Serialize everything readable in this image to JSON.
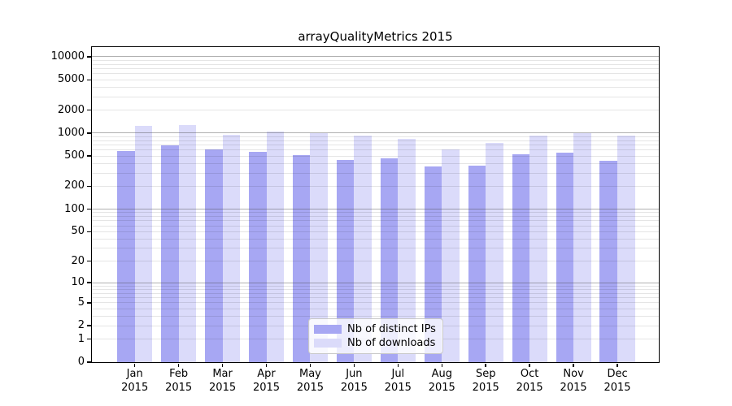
{
  "chart_data": {
    "type": "bar",
    "title": "arrayQualityMetrics 2015",
    "categories": [
      "Jan",
      "Feb",
      "Mar",
      "Apr",
      "May",
      "Jun",
      "Jul",
      "Aug",
      "Sep",
      "Oct",
      "Nov",
      "Dec"
    ],
    "category_year": "2015",
    "series": [
      {
        "name": "Nb of distinct IPs",
        "color": "#a7a7f3",
        "values": [
          585,
          690,
          605,
          575,
          515,
          450,
          465,
          365,
          370,
          525,
          550,
          430
        ]
      },
      {
        "name": "Nb of downloads",
        "color": "#dbdbfa",
        "values": [
          1250,
          1280,
          960,
          1050,
          990,
          935,
          850,
          610,
          745,
          930,
          1005,
          930
        ]
      }
    ],
    "y_axis": {
      "scale": "log1p",
      "tick_values": [
        0,
        1,
        2,
        5,
        10,
        20,
        50,
        100,
        200,
        500,
        1000,
        2000,
        5000,
        10000
      ],
      "major_grid_values": [
        10,
        100,
        1000,
        10000
      ],
      "minor_grid_base_values": [
        1,
        2,
        3,
        4,
        5,
        6,
        7,
        8,
        9
      ],
      "range_max": 12500
    },
    "x_axis": {
      "label_line_2": "2015"
    },
    "legend": {
      "position": "lower-center"
    },
    "grid": true,
    "colors": {
      "major_grid": "#b3b3b3",
      "minor_grid": "#e8e8e8",
      "spine": "#000000"
    }
  }
}
